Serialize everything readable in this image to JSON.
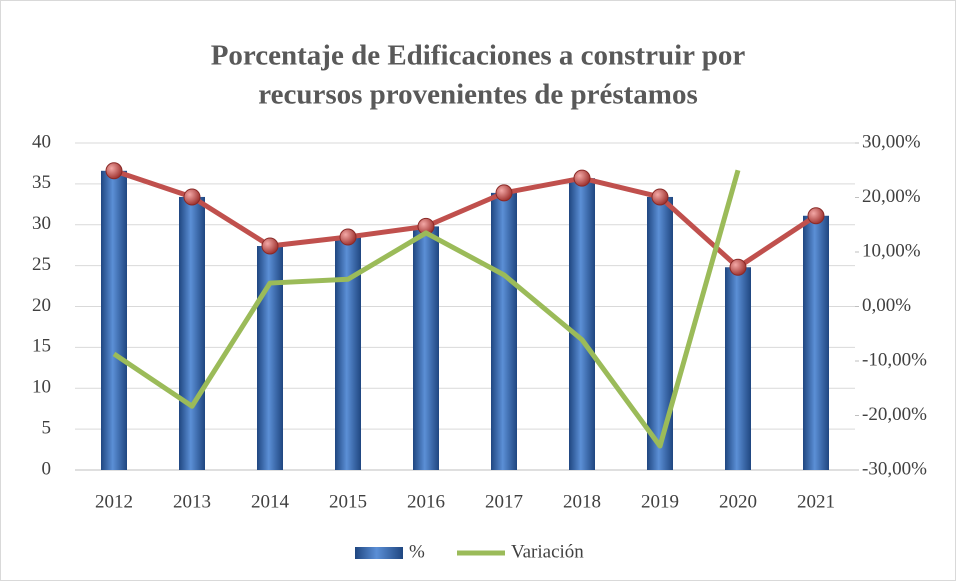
{
  "chart_data": {
    "type": "bar_line",
    "title": [
      "Porcentaje de Edificaciones a construir por",
      "recursos provenientes de préstamos"
    ],
    "categories": [
      "2012",
      "2013",
      "2014",
      "2015",
      "2016",
      "2017",
      "2018",
      "2019",
      "2020",
      "2021"
    ],
    "series": [
      {
        "name": "%",
        "type": "bar",
        "color": "#2e5fa8",
        "line_overlay_color": "#c0504d",
        "values": [
          36.6,
          33.4,
          27.4,
          28.5,
          29.8,
          33.9,
          35.7,
          33.4,
          24.8,
          31.1
        ]
      },
      {
        "name": "Variación",
        "type": "line",
        "axis": "y2",
        "color": "#9bbb59",
        "values": [
          -8.7,
          -18.3,
          4.3,
          5.0,
          13.5,
          5.8,
          -6.1,
          -25.6,
          25.0,
          null
        ]
      }
    ],
    "ylim": [
      0,
      40
    ],
    "yticks": [
      0,
      5,
      10,
      15,
      20,
      25,
      30,
      35,
      40
    ],
    "y2lim": [
      -30,
      30
    ],
    "y2ticks": [
      {
        "value": -30,
        "label": "-30,00%"
      },
      {
        "value": -20,
        "label": "-20,00%"
      },
      {
        "value": -10,
        "label": "-10,00%"
      },
      {
        "value": 0,
        "label": "0,00%"
      },
      {
        "value": 10,
        "label": "10,00%"
      },
      {
        "value": 20,
        "label": "20,00%"
      },
      {
        "value": 30,
        "label": "30,00%"
      }
    ],
    "grid": true,
    "legend": "bottom"
  }
}
